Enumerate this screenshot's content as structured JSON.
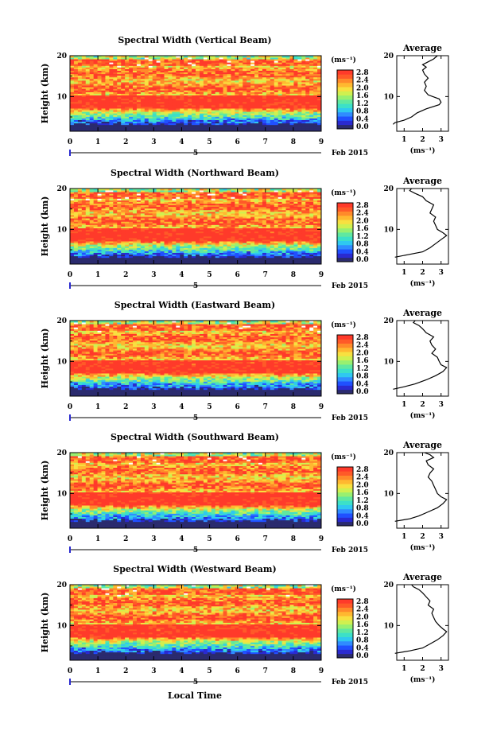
{
  "panels": [
    {
      "title": "Spectral Width (Vertical Beam)",
      "seed": 11,
      "maxSW": 2.4,
      "peak": 8.5,
      "profile": [
        [
          3.2,
          0.4
        ],
        [
          3.6,
          0.5
        ],
        [
          4.2,
          1.0
        ],
        [
          5.0,
          1.4
        ],
        [
          6.0,
          1.7
        ],
        [
          7.0,
          2.2
        ],
        [
          8.0,
          2.9
        ],
        [
          8.6,
          3.0
        ],
        [
          9.4,
          2.9
        ],
        [
          10.4,
          2.3
        ],
        [
          11.5,
          2.1
        ],
        [
          12.5,
          2.2
        ],
        [
          13.5,
          2.1
        ],
        [
          14.5,
          2.3
        ],
        [
          15.5,
          2.1
        ],
        [
          16.5,
          2.0
        ],
        [
          17.2,
          2.2
        ],
        [
          17.8,
          2.0
        ],
        [
          18.5,
          2.3
        ],
        [
          19.2,
          2.6
        ],
        [
          20.0,
          2.8
        ]
      ]
    },
    {
      "title": "Spectral Width (Northward Beam)",
      "seed": 23,
      "maxSW": 3.2,
      "peak": 9.0,
      "profile": [
        [
          3.2,
          0.5
        ],
        [
          3.8,
          1.2
        ],
        [
          4.5,
          2.0
        ],
        [
          5.5,
          2.4
        ],
        [
          6.5,
          2.7
        ],
        [
          7.5,
          3.0
        ],
        [
          8.5,
          3.3
        ],
        [
          9.2,
          3.1
        ],
        [
          10.0,
          2.8
        ],
        [
          11.0,
          2.7
        ],
        [
          12.0,
          2.6
        ],
        [
          13.0,
          2.7
        ],
        [
          14.0,
          2.4
        ],
        [
          15.0,
          2.5
        ],
        [
          16.0,
          2.6
        ],
        [
          17.0,
          2.2
        ],
        [
          18.0,
          2.0
        ],
        [
          18.8,
          1.6
        ],
        [
          19.5,
          1.3
        ],
        [
          20.0,
          1.4
        ]
      ]
    },
    {
      "title": "Spectral Width (Eastward Beam)",
      "seed": 37,
      "maxSW": 3.2,
      "peak": 8.5,
      "profile": [
        [
          3.2,
          0.4
        ],
        [
          3.8,
          1.0
        ],
        [
          4.5,
          1.6
        ],
        [
          5.5,
          2.2
        ],
        [
          6.5,
          2.7
        ],
        [
          7.5,
          3.1
        ],
        [
          8.5,
          3.3
        ],
        [
          9.2,
          3.0
        ],
        [
          10.0,
          2.9
        ],
        [
          11.0,
          2.8
        ],
        [
          12.0,
          2.5
        ],
        [
          13.0,
          2.7
        ],
        [
          14.0,
          2.5
        ],
        [
          15.0,
          2.4
        ],
        [
          16.0,
          2.6
        ],
        [
          17.0,
          2.2
        ],
        [
          18.0,
          2.0
        ],
        [
          18.8,
          1.8
        ],
        [
          19.5,
          1.5
        ],
        [
          20.0,
          1.6
        ]
      ]
    },
    {
      "title": "Spectral Width (Southward Beam)",
      "seed": 53,
      "maxSW": 3.2,
      "peak": 8.5,
      "profile": [
        [
          3.2,
          0.5
        ],
        [
          3.8,
          1.3
        ],
        [
          4.5,
          1.8
        ],
        [
          5.5,
          2.3
        ],
        [
          6.5,
          2.8
        ],
        [
          7.5,
          3.1
        ],
        [
          8.5,
          3.3
        ],
        [
          9.2,
          3.0
        ],
        [
          10.0,
          2.8
        ],
        [
          11.0,
          2.7
        ],
        [
          12.0,
          2.6
        ],
        [
          13.0,
          2.5
        ],
        [
          14.0,
          2.3
        ],
        [
          15.0,
          2.4
        ],
        [
          16.0,
          2.6
        ],
        [
          17.0,
          2.3
        ],
        [
          18.0,
          2.2
        ],
        [
          18.8,
          2.6
        ],
        [
          19.5,
          2.4
        ],
        [
          20.0,
          2.1
        ]
      ]
    },
    {
      "title": "Spectral Width (Westward Beam)",
      "seed": 71,
      "maxSW": 3.2,
      "peak": 8.5,
      "profile": [
        [
          3.2,
          0.5
        ],
        [
          3.8,
          1.3
        ],
        [
          4.5,
          2.0
        ],
        [
          5.5,
          2.4
        ],
        [
          6.5,
          2.8
        ],
        [
          7.5,
          3.1
        ],
        [
          8.5,
          3.3
        ],
        [
          9.2,
          3.1
        ],
        [
          10.0,
          2.9
        ],
        [
          11.0,
          2.7
        ],
        [
          12.0,
          2.6
        ],
        [
          13.0,
          2.5
        ],
        [
          14.0,
          2.6
        ],
        [
          15.0,
          2.3
        ],
        [
          16.0,
          2.4
        ],
        [
          17.0,
          2.2
        ],
        [
          18.0,
          2.0
        ],
        [
          18.8,
          1.8
        ],
        [
          19.5,
          1.5
        ],
        [
          20.0,
          1.4
        ]
      ]
    }
  ],
  "labels": {
    "ylabel": "Height (km)",
    "unit": "(ms⁻¹)",
    "average": "Average",
    "date": "Feb 2015",
    "marker": "5",
    "xlabel": "Local Time"
  },
  "colorbar": {
    "ticks": [
      "2.8",
      "2.4",
      "2.0",
      "1.6",
      "1.2",
      "0.8",
      "0.4",
      "0.0"
    ],
    "colors": [
      "#2b2b6e",
      "#2a2ad0",
      "#2050ff",
      "#2f8cff",
      "#2fc8f0",
      "#3ce0c8",
      "#60e8a0",
      "#98f070",
      "#d0f050",
      "#f8e040",
      "#ffb830",
      "#ff8a2a",
      "#ff5a28",
      "#ff3a2a"
    ]
  },
  "chart_data": {
    "type": "heatmap",
    "x": "local time (hours) 0-9",
    "y": "height (km) 3-20",
    "xticks": [
      "0",
      "1",
      "2",
      "3",
      "4",
      "5",
      "6",
      "7",
      "8",
      "9"
    ],
    "yticks": [
      "10",
      "20"
    ],
    "colorbar_range": [
      0.0,
      2.8
    ],
    "average_xticks": [
      "1",
      "2",
      "3"
    ],
    "average_yticks": [
      "10",
      "20"
    ]
  }
}
